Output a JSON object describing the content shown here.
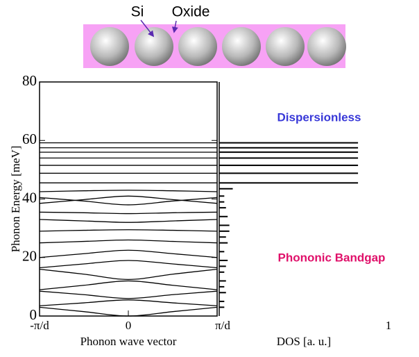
{
  "schematic": {
    "labels": [
      "Si",
      "Oxide"
    ]
  },
  "chart_data": [
    {
      "type": "line",
      "color": "#000000",
      "ylabel": "Phonon Energy [meV]",
      "xlabel": "Phonon wave vector",
      "xlim": [
        -1,
        1
      ],
      "ylim": [
        0,
        80
      ],
      "xticks": [
        {
          "value": -1,
          "label": "-π/d"
        },
        0,
        {
          "value": 1,
          "label": "π/d"
        }
      ],
      "yticks": [
        0,
        20,
        40,
        60,
        80
      ],
      "x": [
        -1,
        -0.5,
        0,
        0.5,
        1
      ],
      "series": [
        {
          "values": [
            3,
            1.5,
            0,
            1.5,
            3
          ]
        },
        {
          "values": [
            3.5,
            4.5,
            5.5,
            4.5,
            3.5
          ]
        },
        {
          "values": [
            8.5,
            7.3,
            6,
            7.3,
            8.5
          ]
        },
        {
          "values": [
            9,
            10.5,
            12,
            10.5,
            9
          ]
        },
        {
          "values": [
            16,
            14.3,
            12.5,
            14.3,
            16
          ]
        },
        {
          "values": [
            16.5,
            17.8,
            19,
            17.8,
            16.5
          ]
        },
        {
          "values": [
            20,
            21.3,
            22.5,
            21.3,
            20
          ]
        },
        {
          "values": [
            25,
            25.5,
            26,
            25.5,
            25
          ]
        },
        {
          "values": [
            29,
            29.3,
            29.5,
            29.3,
            29
          ]
        },
        {
          "values": [
            33,
            32.5,
            32,
            32.5,
            33
          ]
        },
        {
          "values": [
            35.5,
            35.3,
            35,
            35.3,
            35.5
          ]
        },
        {
          "values": [
            40.5,
            39.3,
            38,
            39.3,
            40.5
          ]
        },
        {
          "values": [
            38.5,
            39.8,
            41,
            39.8,
            38.5
          ]
        },
        {
          "values": [
            42.5,
            42.8,
            43,
            42.8,
            42.5
          ]
        },
        {
          "values": [
            45.5,
            45.5,
            45.5,
            45.5,
            45.5
          ]
        },
        {
          "values": [
            48.8,
            48.8,
            48.8,
            48.8,
            48.8
          ]
        },
        {
          "values": [
            51.5,
            51.5,
            51.5,
            51.5,
            51.5
          ]
        },
        {
          "values": [
            54,
            54,
            54,
            54,
            54
          ]
        },
        {
          "values": [
            56,
            56,
            56,
            56,
            56
          ]
        },
        {
          "values": [
            57.5,
            57.5,
            57.5,
            57.5,
            57.5
          ]
        },
        {
          "values": [
            59.2,
            59.2,
            59.2,
            59.2,
            59.2
          ]
        }
      ]
    },
    {
      "type": "bar",
      "orientation": "horizontal",
      "color": "#000000",
      "xlabel": "DOS [a. u.]",
      "xlim": [
        0,
        1
      ],
      "xticks": [
        1
      ],
      "ylim": [
        0,
        80
      ],
      "y": [
        3,
        5,
        8,
        10,
        12,
        15,
        17,
        19,
        22,
        25,
        27,
        29,
        31,
        34,
        37,
        39,
        41,
        43.5,
        45.5,
        48.8,
        51.5,
        54,
        56,
        57.5,
        59.2
      ],
      "values": [
        0.03,
        0.03,
        0.04,
        0.03,
        0.04,
        0.03,
        0.04,
        0.05,
        0.03,
        0.05,
        0.04,
        0.06,
        0.06,
        0.05,
        0.04,
        0.03,
        0.03,
        0.08,
        0.82,
        0.82,
        0.82,
        0.82,
        0.82,
        0.82,
        0.82
      ],
      "annotations": [
        {
          "text": "Dispersionless",
          "color": "#3838d8"
        },
        {
          "text": "Phononic Bandgap",
          "color": "#e0106a"
        }
      ]
    }
  ]
}
